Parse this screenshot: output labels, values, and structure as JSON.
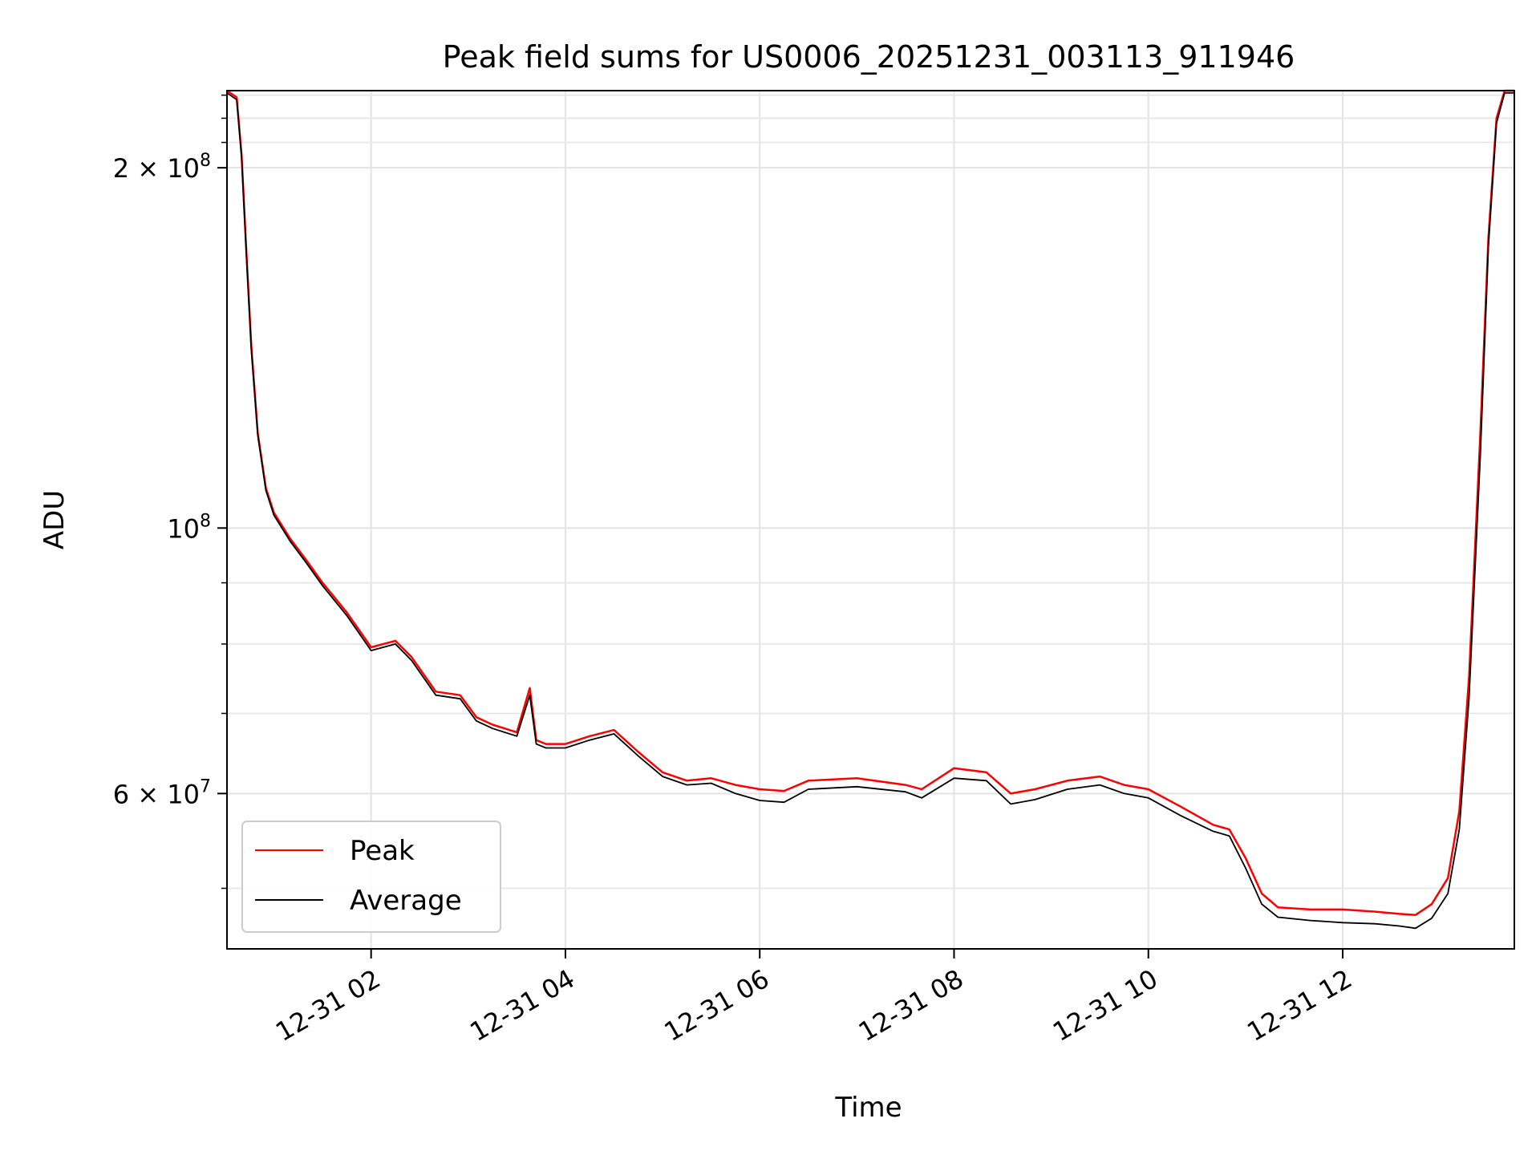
{
  "chart_data": {
    "type": "line",
    "title": "Peak field sums for US0006_20251231_003113_911946",
    "xlabel": "Time",
    "ylabel": "ADU",
    "yscale": "log",
    "ylim": [
      44500000,
      232000000
    ],
    "xlim": [
      "12-31 00:31",
      "12-31 13:46"
    ],
    "x_ticks": [
      "12-31 02",
      "12-31 04",
      "12-31 06",
      "12-31 08",
      "12-31 10",
      "12-31 12"
    ],
    "y_ticks": [
      {
        "value": 200000000,
        "mantissa": "2",
        "base": "10",
        "exp": "8"
      },
      {
        "value": 100000000,
        "mantissa": "",
        "base": "10",
        "exp": "8"
      },
      {
        "value": 60000000,
        "mantissa": "6",
        "base": "10",
        "exp": "7"
      }
    ],
    "grid": true,
    "legend_position": "lower-left",
    "series": [
      {
        "name": "Peak",
        "color": "#ff0000",
        "x": [
          "12-31 00:31",
          "12-31 00:37",
          "12-31 00:40",
          "12-31 00:43",
          "12-31 00:46",
          "12-31 00:50",
          "12-31 00:55",
          "12-31 01:00",
          "12-31 01:10",
          "12-31 01:20",
          "12-31 01:30",
          "12-31 01:45",
          "12-31 02:00",
          "12-31 02:15",
          "12-31 02:25",
          "12-31 02:40",
          "12-31 02:55",
          "12-31 03:05",
          "12-31 03:15",
          "12-31 03:30",
          "12-31 03:38",
          "12-31 03:42",
          "12-31 03:48",
          "12-31 04:00",
          "12-31 04:15",
          "12-31 04:30",
          "12-31 04:45",
          "12-31 05:00",
          "12-31 05:15",
          "12-31 05:30",
          "12-31 05:45",
          "12-31 06:00",
          "12-31 06:15",
          "12-31 06:30",
          "12-31 07:00",
          "12-31 07:30",
          "12-31 07:40",
          "12-31 08:00",
          "12-31 08:20",
          "12-31 08:35",
          "12-31 08:50",
          "12-31 09:10",
          "12-31 09:30",
          "12-31 09:45",
          "12-31 10:00",
          "12-31 10:20",
          "12-31 10:40",
          "12-31 10:50",
          "12-31 11:00",
          "12-31 11:10",
          "12-31 11:20",
          "12-31 11:40",
          "12-31 12:00",
          "12-31 12:20",
          "12-31 12:35",
          "12-31 12:45",
          "12-31 12:55",
          "12-31 13:05",
          "12-31 13:12",
          "12-31 13:18",
          "12-31 13:25",
          "12-31 13:30",
          "12-31 13:35",
          "12-31 13:40",
          "12-31 13:46"
        ],
        "values": [
          232000000,
          229000000,
          205000000,
          170000000,
          142000000,
          120000000,
          108000000,
          103000000,
          98000000,
          94000000,
          90000000,
          85000000,
          79500000,
          80500000,
          78000000,
          73000000,
          72500000,
          69500000,
          68500000,
          67500000,
          73500000,
          66500000,
          66000000,
          66000000,
          67000000,
          67800000,
          65000000,
          62500000,
          61500000,
          61800000,
          61000000,
          60500000,
          60300000,
          61500000,
          61800000,
          61000000,
          60500000,
          63000000,
          62500000,
          60000000,
          60500000,
          61500000,
          62000000,
          61000000,
          60500000,
          58500000,
          56500000,
          56000000,
          53000000,
          49500000,
          48200000,
          48000000,
          48000000,
          47800000,
          47600000,
          47500000,
          48500000,
          51000000,
          58000000,
          75000000,
          120000000,
          175000000,
          220000000,
          232000000,
          232000000
        ]
      },
      {
        "name": "Average",
        "color": "#000000",
        "x": [
          "12-31 00:31",
          "12-31 00:37",
          "12-31 00:40",
          "12-31 00:43",
          "12-31 00:46",
          "12-31 00:50",
          "12-31 00:55",
          "12-31 01:00",
          "12-31 01:10",
          "12-31 01:20",
          "12-31 01:30",
          "12-31 01:45",
          "12-31 02:00",
          "12-31 02:15",
          "12-31 02:25",
          "12-31 02:40",
          "12-31 02:55",
          "12-31 03:05",
          "12-31 03:15",
          "12-31 03:30",
          "12-31 03:38",
          "12-31 03:42",
          "12-31 03:48",
          "12-31 04:00",
          "12-31 04:15",
          "12-31 04:30",
          "12-31 04:45",
          "12-31 05:00",
          "12-31 05:15",
          "12-31 05:30",
          "12-31 05:45",
          "12-31 06:00",
          "12-31 06:15",
          "12-31 06:30",
          "12-31 07:00",
          "12-31 07:30",
          "12-31 07:40",
          "12-31 08:00",
          "12-31 08:20",
          "12-31 08:35",
          "12-31 08:50",
          "12-31 09:10",
          "12-31 09:30",
          "12-31 09:45",
          "12-31 10:00",
          "12-31 10:20",
          "12-31 10:40",
          "12-31 10:50",
          "12-31 11:00",
          "12-31 11:10",
          "12-31 11:20",
          "12-31 11:40",
          "12-31 12:00",
          "12-31 12:20",
          "12-31 12:35",
          "12-31 12:45",
          "12-31 12:55",
          "12-31 13:05",
          "12-31 13:12",
          "12-31 13:18",
          "12-31 13:25",
          "12-31 13:30",
          "12-31 13:35",
          "12-31 13:40",
          "12-31 13:46"
        ],
        "values": [
          231000000,
          228000000,
          204000000,
          169000000,
          141000000,
          119500000,
          107500000,
          102500000,
          97500000,
          93500000,
          89500000,
          84500000,
          79000000,
          80000000,
          77500000,
          72500000,
          72000000,
          69000000,
          68000000,
          67000000,
          72500000,
          66000000,
          65500000,
          65500000,
          66500000,
          67300000,
          64500000,
          62000000,
          61000000,
          61200000,
          60000000,
          59200000,
          59000000,
          60500000,
          60800000,
          60200000,
          59500000,
          61800000,
          61500000,
          58800000,
          59300000,
          60500000,
          61000000,
          60000000,
          59500000,
          57500000,
          55800000,
          55300000,
          52000000,
          48500000,
          47300000,
          47000000,
          46800000,
          46700000,
          46500000,
          46300000,
          47200000,
          49500000,
          56000000,
          72000000,
          115000000,
          172000000,
          218000000,
          231000000,
          231000000
        ]
      }
    ]
  }
}
